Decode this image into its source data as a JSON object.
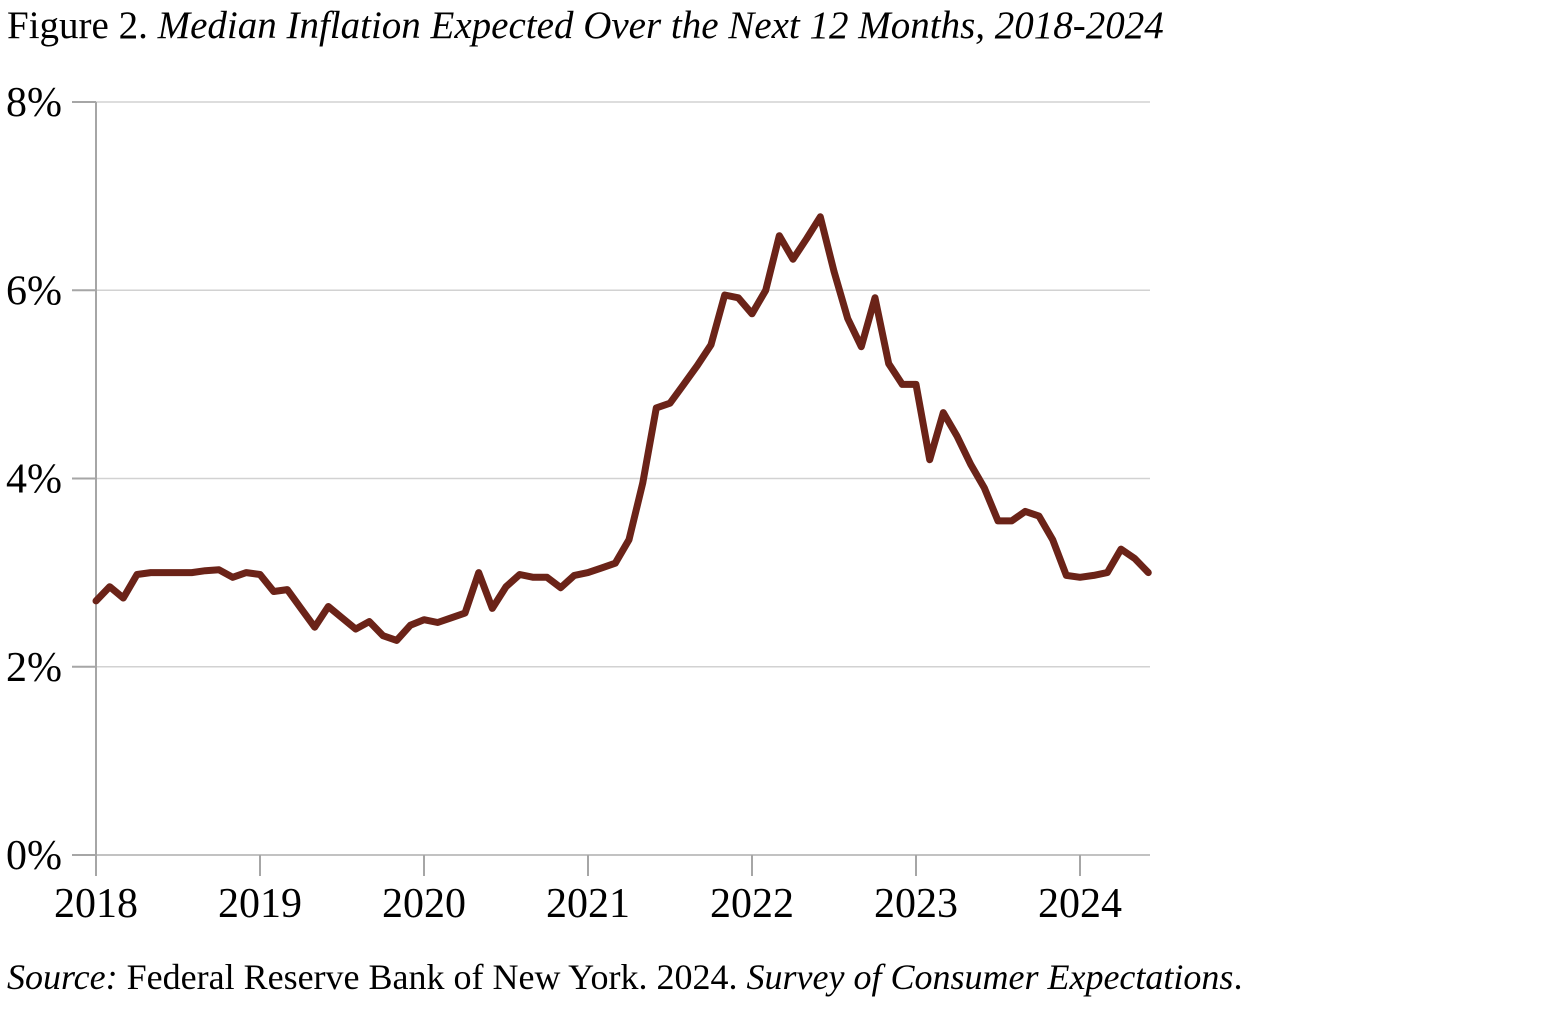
{
  "title": {
    "prefix": "Figure 2.",
    "main": " Median Inflation Expected Over the Next 12 Months, 2018-2024"
  },
  "source": {
    "label": "Source:",
    "regular": " Federal Reserve Bank of New York. 2024. ",
    "italic": "Survey of Consumer Expectations",
    "suffix": "."
  },
  "chart_data": {
    "type": "line",
    "title": "Median Inflation Expected Over the Next 12 Months, 2018-2024",
    "x_tick_labels": [
      "2018",
      "2019",
      "2020",
      "2021",
      "2022",
      "2023",
      "2024"
    ],
    "y_tick_labels": [
      "0%",
      "2%",
      "4%",
      "6%",
      "8%"
    ],
    "y_axis": {
      "min": 0,
      "max": 8,
      "step": 2,
      "unit": "%"
    },
    "x_range": {
      "start": "2018-01",
      "end": "2024-06",
      "frequency": "monthly"
    },
    "grid": true,
    "legend": "none",
    "line_color": "#6B2318",
    "grid_color": "#D2D2D2",
    "axis_color": "#A6A6A6",
    "text_color": "#000000",
    "series": [
      {
        "name": "Median inflation expected over the next 12 months",
        "values": [
          2.7,
          2.85,
          2.73,
          2.98,
          3.0,
          3.0,
          3.0,
          3.0,
          3.02,
          3.03,
          2.95,
          3.0,
          2.98,
          2.8,
          2.82,
          2.62,
          2.42,
          2.64,
          2.52,
          2.4,
          2.48,
          2.33,
          2.28,
          2.44,
          2.5,
          2.47,
          2.52,
          2.57,
          3.0,
          2.62,
          2.85,
          2.98,
          2.95,
          2.95,
          2.84,
          2.97,
          3.0,
          3.05,
          3.1,
          3.35,
          3.95,
          4.75,
          4.8,
          5.0,
          5.2,
          5.42,
          5.95,
          5.92,
          5.75,
          6.0,
          6.58,
          6.33,
          6.55,
          6.78,
          6.2,
          5.7,
          5.4,
          5.92,
          5.22,
          5.0,
          5.0,
          4.2,
          4.7,
          4.45,
          4.15,
          3.9,
          3.55,
          3.55,
          3.65,
          3.6,
          3.35,
          2.97,
          2.95,
          2.97,
          3.0,
          3.25,
          3.15,
          3.0
        ]
      }
    ]
  }
}
